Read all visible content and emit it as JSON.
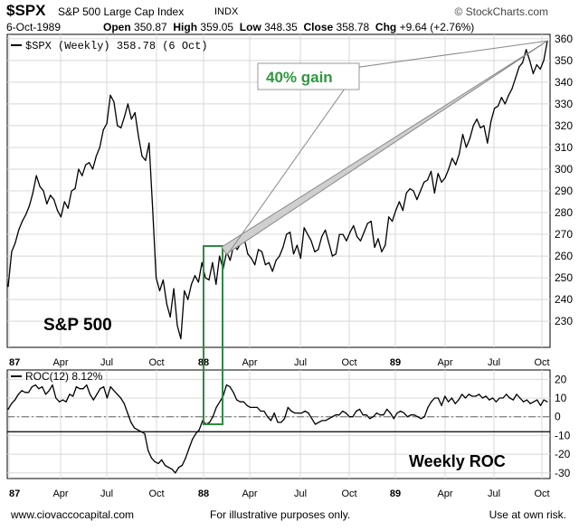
{
  "header": {
    "symbol": "$SPX",
    "name": "S&P 500 Large Cap Index",
    "exchange": "INDX",
    "brand": "© StockCharts.com",
    "date": "6-Oct-1989",
    "open_label": "Open",
    "open_value": "350.87",
    "high_label": "High",
    "high_value": "359.05",
    "low_label": "Low",
    "low_value": "348.35",
    "close_label": "Close",
    "close_value": "358.78",
    "chg_label": "Chg",
    "chg_value": "+9.64 (+2.76%)"
  },
  "footer": {
    "left": "www.ciovaccocapital.com",
    "center": "For illustrative purposes only.",
    "right": "Use at own risk."
  },
  "colors": {
    "price": "#000000",
    "box": "#2e8b3e",
    "callout_text": "#2e9a3e",
    "grid": "#d8d8d8"
  },
  "chart_data": [
    {
      "type": "line",
      "legend": "$SPX (Weekly) 358.78 (6 Oct)",
      "title_annotation": "S&P 500",
      "callout": "40% gain",
      "x_tick_labels": [
        "87",
        "Apr",
        "Jul",
        "Oct",
        "88",
        "Apr",
        "Jul",
        "Oct",
        "89",
        "Apr",
        "Jul",
        "Oct"
      ],
      "y_tick_labels": [
        360,
        350,
        340,
        330,
        320,
        310,
        300,
        290,
        280,
        270,
        260,
        250,
        240,
        230
      ],
      "ylim": [
        218,
        362
      ],
      "series": [
        {
          "values": [
            246,
            262,
            266,
            272,
            276,
            279,
            283,
            289,
            297,
            292,
            290,
            284,
            288,
            286,
            281,
            278,
            285,
            282,
            290,
            291,
            300,
            297,
            302,
            303,
            300,
            306,
            310,
            318,
            321,
            334,
            331,
            320,
            319,
            324,
            330,
            323,
            326,
            315,
            306,
            304,
            312,
            282,
            250,
            244,
            249,
            238,
            232,
            245,
            228,
            222,
            244,
            240,
            247,
            251,
            248,
            257,
            250,
            249,
            257,
            247,
            260,
            254,
            262,
            258,
            265,
            263,
            266,
            268,
            261,
            259,
            256,
            263,
            262,
            256,
            257,
            253,
            258,
            260,
            264,
            270,
            271,
            261,
            265,
            259,
            273,
            270,
            267,
            262,
            263,
            269,
            272,
            266,
            260,
            261,
            270,
            270,
            267,
            271,
            274,
            269,
            267,
            271,
            275,
            276,
            264,
            268,
            262,
            265,
            278,
            276,
            281,
            285,
            281,
            289,
            291,
            290,
            286,
            290,
            294,
            295,
            299,
            289,
            298,
            294,
            296,
            300,
            305,
            302,
            307,
            316,
            310,
            314,
            320,
            323,
            319,
            320,
            312,
            322,
            328,
            329,
            333,
            330,
            334,
            337,
            342,
            347,
            349,
            355,
            350,
            344,
            348,
            346,
            350,
            359
          ]
        }
      ]
    },
    {
      "type": "line",
      "legend": "ROC(12) 8.12%",
      "annotation": "Weekly ROC",
      "x_tick_labels": [
        "87",
        "Apr",
        "Jul",
        "Oct",
        "88",
        "Apr",
        "Jul",
        "Oct",
        "89",
        "Apr",
        "Jul",
        "Oct"
      ],
      "y_tick_labels": [
        20,
        10,
        0,
        -10,
        -20,
        -30
      ],
      "ylim": [
        -33,
        25
      ],
      "reference_lines": [
        0,
        -8
      ],
      "series": [
        {
          "values": [
            4,
            7,
            9,
            12,
            14,
            13,
            13,
            16,
            17,
            15,
            16,
            12,
            14,
            17,
            10,
            8,
            9,
            8,
            12,
            11,
            16,
            15,
            15,
            17,
            12,
            9,
            12,
            15,
            16,
            10,
            16,
            14,
            12,
            10,
            7,
            2,
            -3,
            -6,
            -7,
            -8,
            -9,
            -18,
            -22,
            -24,
            -25,
            -23,
            -26,
            -27,
            -28,
            -30,
            -27,
            -26,
            -22,
            -17,
            -12,
            -9,
            -7,
            -2,
            -4,
            -3,
            0,
            5,
            8,
            11,
            17,
            16,
            13,
            9,
            8,
            8,
            6,
            5,
            5,
            5,
            3,
            3,
            0,
            -2,
            2,
            -3,
            -3,
            -1,
            5,
            3,
            2,
            2,
            2,
            3,
            2,
            -1,
            -4,
            -3,
            -2,
            -2,
            -1,
            0,
            1,
            1,
            3,
            2,
            0,
            0,
            3,
            4,
            1,
            1,
            -1,
            0,
            2,
            1,
            1,
            4,
            2,
            -1,
            2,
            3,
            2,
            0,
            1,
            1,
            0,
            -1,
            0,
            5,
            8,
            10,
            10,
            6,
            11,
            8,
            10,
            7,
            9,
            12,
            10,
            12,
            11,
            11,
            12,
            10,
            11,
            9,
            10,
            8,
            10,
            10,
            12,
            10,
            9,
            12,
            10,
            8,
            9,
            7,
            8,
            9,
            6,
            9,
            8
          ]
        }
      ]
    }
  ]
}
